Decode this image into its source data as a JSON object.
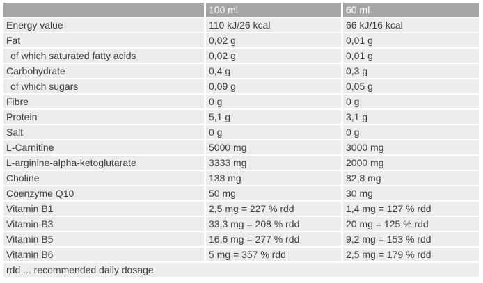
{
  "colors": {
    "header_bg": "#a6a6a6",
    "header_text": "#ffffff",
    "row_bg": "#ececec",
    "body_text": "#3d3d3d",
    "separator": "#ffffff"
  },
  "table": {
    "columns": {
      "label": "",
      "per100": "100 ml",
      "per60": "60 ml"
    },
    "rows": [
      {
        "name": "Energy value",
        "per100": "110 kJ/26 kcal",
        "per60": "66 kJ/16 kcal"
      },
      {
        "name": "Fat",
        "per100": "0,02 g",
        "per60": "0,01 g"
      },
      {
        "name": "of which saturated fatty acids",
        "per100": "0,02 g",
        "per60": "0,01 g"
      },
      {
        "name": "Carbohydrate",
        "per100": "0,4 g",
        "per60": "0,3 g"
      },
      {
        "name": "of which sugars",
        "per100": "0,09 g",
        "per60": "0,05 g"
      },
      {
        "name": "Fibre",
        "per100": "0 g",
        "per60": "0 g"
      },
      {
        "name": "Protein",
        "per100": "5,1 g",
        "per60": "3,1 g"
      },
      {
        "name": "Salt",
        "per100": "0 g",
        "per60": "0 g"
      },
      {
        "name": "L-Carnitine",
        "per100": "5000 mg",
        "per60": "3000 mg"
      },
      {
        "name": "L-arginine-alpha-ketoglutarate",
        "per100": "3333 mg",
        "per60": "2000 mg"
      },
      {
        "name": "Choline",
        "per100": "138 mg",
        "per60": "82,8 mg"
      },
      {
        "name": "Coenzyme Q10",
        "per100": "50 mg",
        "per60": "30 mg"
      },
      {
        "name": "Vitamin B1",
        "per100": "2,5 mg = 227 % rdd",
        "per60": "1,4 mg = 127 % rdd"
      },
      {
        "name": "Vitamin B3",
        "per100": "33,3 mg = 208 % rdd",
        "per60": "20 mg = 125 % rdd"
      },
      {
        "name": "Vitamin B5",
        "per100": "16,6 mg = 277 % rdd",
        "per60": "9,2 mg = 153 % rdd"
      },
      {
        "name": "Vitamin B6",
        "per100": "5 mg = 357 % rdd",
        "per60": "2,5 mg = 179 % rdd"
      }
    ],
    "footnote": "rdd ... recommended daily dosage"
  }
}
